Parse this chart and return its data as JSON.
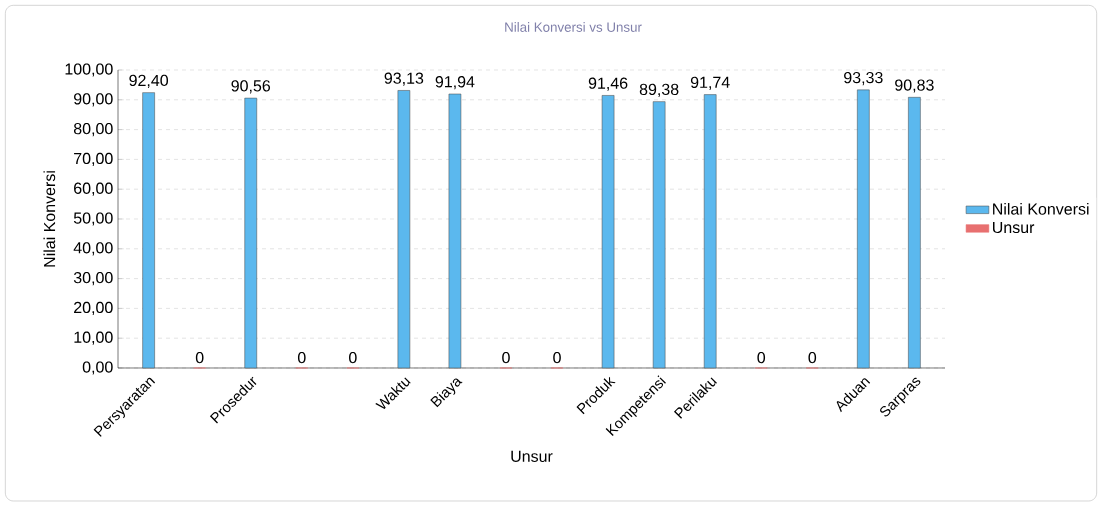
{
  "chart_data": {
    "type": "bar",
    "title": "Nilai Konversi vs Unsur",
    "xlabel": "Unsur",
    "ylabel": "Nilai Konversi",
    "categories": [
      "Persyaratan",
      null,
      "Prosedur",
      null,
      null,
      "Waktu",
      "Biaya",
      null,
      null,
      "Produk",
      "Kompetensi",
      "Perilaku",
      null,
      null,
      "Aduan",
      "Sarpras"
    ],
    "series": [
      {
        "name": "Nilai Konversi",
        "color": "#5bb8ee",
        "values": [
          92.4,
          null,
          90.56,
          null,
          null,
          93.13,
          91.94,
          null,
          null,
          91.46,
          89.38,
          91.74,
          null,
          null,
          93.33,
          90.83
        ],
        "value_labels": [
          "92,40",
          null,
          "90,56",
          null,
          null,
          "93,13",
          "91,94",
          null,
          null,
          "91,46",
          "89,38",
          "91,74",
          null,
          null,
          "93,33",
          "90,83"
        ]
      },
      {
        "name": "Unsur",
        "color": "#e87070",
        "values": [
          null,
          0,
          null,
          0,
          0,
          null,
          null,
          0,
          0,
          null,
          null,
          null,
          0,
          0,
          null,
          null
        ],
        "value_labels": [
          null,
          "0",
          null,
          "0",
          "0",
          null,
          null,
          "0",
          "0",
          null,
          null,
          null,
          "0",
          "0",
          null,
          null
        ]
      }
    ],
    "ylim": [
      0,
      100
    ],
    "yticks": [
      {
        "value": 0,
        "label": "0,00"
      },
      {
        "value": 10,
        "label": "10,00"
      },
      {
        "value": 20,
        "label": "20,00"
      },
      {
        "value": 30,
        "label": "30,00"
      },
      {
        "value": 40,
        "label": "40,00"
      },
      {
        "value": 50,
        "label": "50,00"
      },
      {
        "value": 60,
        "label": "60,00"
      },
      {
        "value": 70,
        "label": "70,00"
      },
      {
        "value": 80,
        "label": "80,00"
      },
      {
        "value": 90,
        "label": "90,00"
      },
      {
        "value": 100,
        "label": "100,00"
      }
    ],
    "grid": "y",
    "legend": "right"
  }
}
